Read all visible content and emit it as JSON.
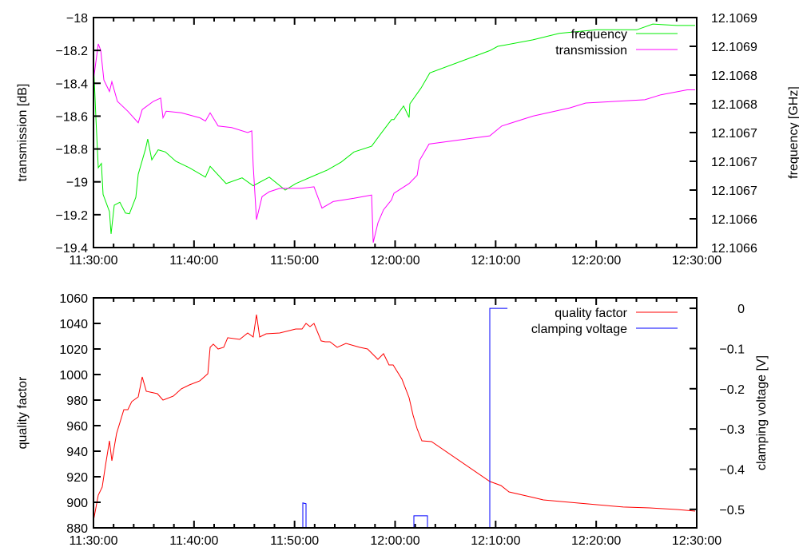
{
  "chart_data": [
    {
      "type": "line",
      "x_unit": "minutes after 11:30:00",
      "xlim": [
        0,
        60
      ],
      "x_ticks": [
        0,
        10,
        20,
        30,
        40,
        50,
        60
      ],
      "x_tick_labels": [
        "11:30:00",
        "11:40:00",
        "11:50:00",
        "12:00:00",
        "12:10:00",
        "12:20:00",
        "12:30:00"
      ],
      "ylabel": "transmission [dB]",
      "ylim": [
        -19.4,
        -18
      ],
      "y_ticks": [
        -18,
        -18.2,
        -18.4,
        -18.6,
        -18.8,
        -19,
        -19.2,
        -19.4
      ],
      "y_tick_labels": [
        "−18",
        "−18.2",
        "−18.4",
        "−18.6",
        "−18.8",
        "−19",
        "−19.2",
        "−19.4"
      ],
      "y2label": "frequency [GHz]",
      "y2lim": [
        12.10658,
        12.1069
      ],
      "y2_ticks": [
        12.10658,
        12.10662,
        12.10666,
        12.1067,
        12.10674,
        12.10678,
        12.10682,
        12.10686,
        12.1069
      ],
      "y2_tick_labels": [
        "12.1066",
        "12.1066",
        "12.1067",
        "12.1067",
        "12.1067",
        "12.1068",
        "12.1068",
        "12.1069",
        "12.1069"
      ],
      "legend_position": "top-right",
      "series": [
        {
          "name": "frequency",
          "axis": "y2",
          "color": "#00ee00",
          "x": [
            0,
            0.24,
            0.48,
            0.79,
            0.95,
            1.59,
            1.75,
            2.07,
            2.62,
            3.18,
            3.58,
            4.21,
            4.45,
            5.17,
            5.4,
            5.8,
            6.44,
            7.15,
            8.19,
            9.54,
            11.13,
            11.6,
            13.19,
            14.78,
            15.89,
            17.48,
            19.07,
            20.11,
            21.93,
            23.28,
            24.64,
            25.91,
            27.66,
            28.61,
            29.64,
            29.88,
            30.84,
            31.39,
            31.47,
            32.58,
            33.46,
            39.42,
            40.21,
            41.01,
            43.71,
            46.33,
            50.07,
            54.04,
            55.63,
            58.01,
            59.84
          ],
          "y": [
            12.106839,
            12.106761,
            12.106691,
            12.106697,
            12.106654,
            12.10663,
            12.106599,
            12.106639,
            12.106643,
            12.106628,
            12.106627,
            12.10665,
            12.106682,
            12.106717,
            12.106731,
            12.106702,
            12.106716,
            12.106713,
            12.1067,
            12.106691,
            12.106678,
            12.106693,
            12.106669,
            12.106677,
            12.106666,
            12.106678,
            12.10666,
            12.106669,
            12.10668,
            12.106688,
            12.106699,
            12.106713,
            12.106721,
            12.106739,
            12.106758,
            12.106758,
            12.106777,
            12.106761,
            12.10678,
            12.106802,
            12.106823,
            12.106854,
            12.10686,
            12.106862,
            12.106869,
            12.106878,
            12.106883,
            12.106883,
            12.106891,
            12.106889,
            12.106889
          ]
        },
        {
          "name": "transmission",
          "axis": "y",
          "color": "#ff00ff",
          "x": [
            0,
            0.48,
            0.72,
            1.03,
            1.59,
            1.83,
            2.38,
            3.42,
            4.45,
            4.85,
            5.96,
            6.68,
            6.91,
            7.23,
            8.74,
            10.57,
            11.13,
            11.6,
            12.4,
            13.75,
            15.34,
            15.74,
            15.89,
            16.21,
            16.77,
            17.48,
            18.52,
            20.66,
            21.93,
            22.73,
            23.84,
            25.91,
            27.66,
            27.82,
            28.29,
            28.85,
            29.64,
            29.88,
            31.39,
            32.19,
            32.42,
            33.38,
            39.42,
            40.61,
            43.71,
            47.37,
            48.96,
            54.84,
            56.43,
            59.05,
            59.84
          ],
          "y": [
            -18.38,
            -18.16,
            -18.2,
            -18.38,
            -18.45,
            -18.39,
            -18.51,
            -18.57,
            -18.64,
            -18.56,
            -18.51,
            -18.49,
            -18.61,
            -18.57,
            -18.58,
            -18.61,
            -18.63,
            -18.58,
            -18.66,
            -18.67,
            -18.7,
            -18.69,
            -18.9,
            -19.23,
            -19.09,
            -19.06,
            -19.04,
            -19.04,
            -19.03,
            -19.16,
            -19.12,
            -19.1,
            -19.08,
            -19.37,
            -19.25,
            -19.17,
            -19.11,
            -19.07,
            -19.01,
            -18.96,
            -18.87,
            -18.77,
            -18.72,
            -18.66,
            -18.6,
            -18.55,
            -18.52,
            -18.5,
            -18.47,
            -18.44,
            -18.44
          ]
        }
      ]
    },
    {
      "type": "line",
      "x_unit": "minutes after 11:30:00",
      "xlim": [
        0,
        60
      ],
      "x_ticks": [
        0,
        10,
        20,
        30,
        40,
        50,
        60
      ],
      "x_tick_labels": [
        "11:30:00",
        "11:40:00",
        "11:50:00",
        "12:00:00",
        "12:10:00",
        "12:20:00",
        "12:30:00"
      ],
      "ylabel": "quality factor",
      "ylim": [
        880,
        1060
      ],
      "y_ticks": [
        880,
        900,
        920,
        940,
        960,
        980,
        1000,
        1020,
        1040,
        1060
      ],
      "y_tick_labels": [
        "880",
        "900",
        "920",
        "940",
        "960",
        "980",
        "1000",
        "1020",
        "1040",
        "1060"
      ],
      "y2label": "clamping voltage [V]",
      "y2lim": [
        -0.546,
        0.026
      ],
      "y2_ticks": [
        0,
        -0.1,
        -0.2,
        -0.3,
        -0.4,
        -0.5
      ],
      "y2_tick_labels": [
        "0",
        "−0.1",
        "−0.2",
        "−0.3",
        "−0.4",
        "−0.5"
      ],
      "legend_position": "top-right",
      "series": [
        {
          "name": "quality factor",
          "axis": "y",
          "color": "#ff0000",
          "x": [
            0,
            0.48,
            0.87,
            1.19,
            1.59,
            1.83,
            2.3,
            3.02,
            3.42,
            3.81,
            4.45,
            4.85,
            5.25,
            6.36,
            6.91,
            7.95,
            8.74,
            9.54,
            10.57,
            11.37,
            11.6,
            11.92,
            12.4,
            12.95,
            13.35,
            14.54,
            15.34,
            15.89,
            16.21,
            16.53,
            17.17,
            18.52,
            20.11,
            20.74,
            21.14,
            21.54,
            21.93,
            22.65,
            23.05,
            23.52,
            24.24,
            25.11,
            26.46,
            27.26,
            28.29,
            28.85,
            29.4,
            29.8,
            30.68,
            31.39,
            31.79,
            32.19,
            32.66,
            33.62,
            39.42,
            40.53,
            41.33,
            43.71,
            44.74,
            47.37,
            50.07,
            52.69,
            55.31,
            58.01,
            59.84
          ],
          "y": [
            885.6,
            905.6,
            911.9,
            928.8,
            948.1,
            932.5,
            953.8,
            972.5,
            972.5,
            978.8,
            982.5,
            998.1,
            986.9,
            985,
            980,
            983.1,
            988.8,
            991.9,
            995,
            1000.6,
            1021.3,
            1023.8,
            1020,
            1021.3,
            1028.8,
            1027.5,
            1032.5,
            1029.4,
            1046.9,
            1029.4,
            1031.9,
            1032.5,
            1035.6,
            1035.6,
            1040,
            1037.5,
            1040,
            1026.3,
            1025.6,
            1025.6,
            1021.3,
            1024.4,
            1021.3,
            1020,
            1011.9,
            1016.3,
            1007.5,
            1007.5,
            996.3,
            981.9,
            968.1,
            957.5,
            948.1,
            947.5,
            916.3,
            913.1,
            908.1,
            903.8,
            901.9,
            900,
            898.1,
            896.3,
            895.6,
            894.4,
            893.1
          ]
        },
        {
          "name": "clamping voltage",
          "axis": "y2",
          "color": "#0000ff",
          "x": [
            20.82,
            20.82,
            21.14,
            21.14,
            31.87,
            31.87,
            33.22,
            33.22,
            39.42,
            39.42,
            41.17
          ],
          "y": [
            -0.6,
            -0.484,
            -0.486,
            -0.6,
            -0.6,
            -0.516,
            -0.516,
            -0.6,
            -0.6,
            0,
            0
          ]
        }
      ]
    }
  ]
}
